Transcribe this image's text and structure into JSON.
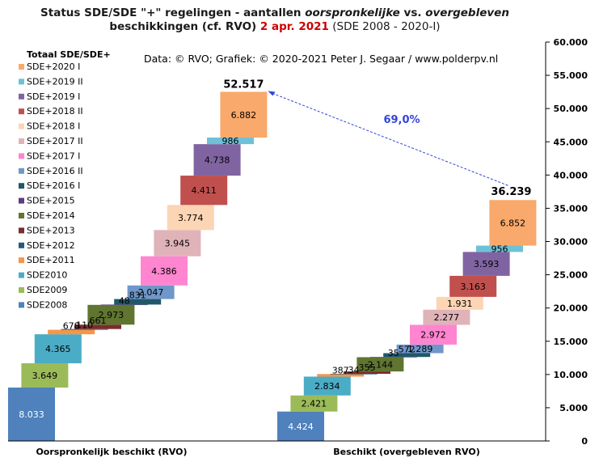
{
  "title": {
    "line1_a": "Status SDE/SDE \"+\" regelingen - aantallen ",
    "line1_b": "oorspronkelijke",
    "line1_c": " vs. ",
    "line1_d": "overgebleven",
    "line2_a": "beschikkingen  (cf. RVO) ",
    "line2_date": "2 apr. 2021",
    "line2_src": "  (SDE 2008 - 2020-I)"
  },
  "source_note": "Data: © RVO; Grafiek:  © 2020-2021 Peter J. Segaar / www.polderpv.nl",
  "colors": {
    "annotation": "#3344dd",
    "axis": "#000000",
    "grid": "#cccccc"
  },
  "chart_data": {
    "type": "bar",
    "subtype": "stacked waterfall",
    "legend_title": "Totaal SDE/SDE+",
    "legend_position": "left",
    "categories": [
      "Oorspronkelijk beschikt (RVO)",
      "Beschikt (overgebleven RVO)"
    ],
    "y_ticks": [
      "0",
      "5.000",
      "10.000",
      "15.000",
      "20.000",
      "25.000",
      "30.000",
      "35.000",
      "40.000",
      "45.000",
      "50.000",
      "55.000",
      "60.000"
    ],
    "ylim": [
      0,
      60000
    ],
    "y_axis_side": "right",
    "series": [
      {
        "name": "SDE2008",
        "color": "#4f81bd",
        "values": [
          8033,
          4424
        ],
        "labels": [
          "8.033",
          "4.424"
        ]
      },
      {
        "name": "SDE2009",
        "color": "#9bbb59",
        "values": [
          3649,
          2421
        ],
        "labels": [
          "3.649",
          "2.421"
        ]
      },
      {
        "name": "SDE2010",
        "color": "#4bacc6",
        "values": [
          4365,
          2834
        ],
        "labels": [
          "4.365",
          "2.834"
        ]
      },
      {
        "name": "SDE+2011",
        "color": "#f79646",
        "values": [
          678,
          387
        ],
        "labels": [
          "678",
          "387"
        ]
      },
      {
        "name": "SDE+2012",
        "color": "#1f5c7a",
        "values": [
          110,
          34
        ],
        "labels": [
          "110",
          "34"
        ]
      },
      {
        "name": "SDE+2013",
        "color": "#7b2c2c",
        "values": [
          661,
          355
        ],
        "labels": [
          "661",
          "355"
        ]
      },
      {
        "name": "SDE+2014",
        "color": "#5f7530",
        "values": [
          2973,
          2144
        ],
        "labels": [
          "2.973",
          "2.144"
        ]
      },
      {
        "name": "SDE+2015",
        "color": "#5e3d7e",
        "values": [
          48,
          35
        ],
        "labels": [
          "48",
          "35"
        ]
      },
      {
        "name": "SDE+2016 I",
        "color": "#215868",
        "values": [
          831,
          572
        ],
        "labels": [
          "831",
          "572"
        ]
      },
      {
        "name": "SDE+2016 II",
        "color": "#6f97c9",
        "values": [
          2047,
          1289
        ],
        "labels": [
          "2.047",
          "1.289"
        ]
      },
      {
        "name": "SDE+2017 I",
        "color": "#ff85d0",
        "values": [
          4386,
          2972
        ],
        "labels": [
          "4.386",
          "2.972"
        ]
      },
      {
        "name": "SDE+2017 II",
        "color": "#e0b3b8",
        "values": [
          3945,
          2277
        ],
        "labels": [
          "3.945",
          "2.277"
        ]
      },
      {
        "name": "SDE+2018 I",
        "color": "#fcd5b4",
        "values": [
          3774,
          1931
        ],
        "labels": [
          "3.774",
          "1.931"
        ]
      },
      {
        "name": "SDE+2018 II",
        "color": "#c0504d",
        "values": [
          4411,
          3163
        ],
        "labels": [
          "4.411",
          "3.163"
        ]
      },
      {
        "name": "SDE+2019 I",
        "color": "#8064a2",
        "values": [
          4738,
          3593
        ],
        "labels": [
          "4.738",
          "3.593"
        ]
      },
      {
        "name": "SDE+2019 II",
        "color": "#6ec1d6",
        "values": [
          986,
          956
        ],
        "labels": [
          "986",
          "956"
        ]
      },
      {
        "name": "SDE+2020 I",
        "color": "#f9a96b",
        "values": [
          6882,
          6852
        ],
        "labels": [
          "6.882",
          "6.852"
        ]
      }
    ],
    "totals": [
      "52.517",
      "36.239"
    ],
    "annotation": "69,0%"
  }
}
